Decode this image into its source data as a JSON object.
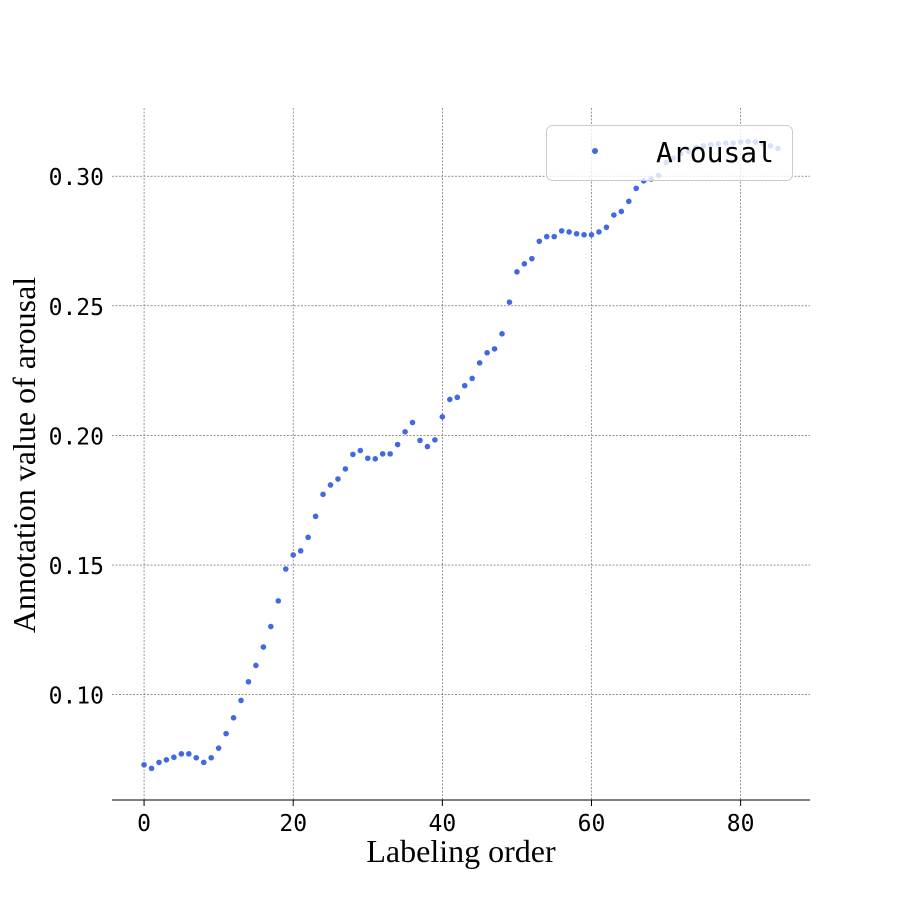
{
  "chart_data": {
    "type": "scatter",
    "title": "",
    "xlabel": "Labeling order",
    "ylabel": "Annotation value of arousal",
    "xlim": [
      -4.3,
      89.3
    ],
    "ylim": [
      0.0594,
      0.3263
    ],
    "x_ticks": [
      0,
      20,
      40,
      60,
      80
    ],
    "x_tick_labels": [
      "0",
      "20",
      "40",
      "60",
      "80"
    ],
    "y_ticks": [
      0.1,
      0.15,
      0.2,
      0.25,
      0.3
    ],
    "y_tick_labels": [
      "0.10",
      "0.15",
      "0.20",
      "0.25",
      "0.30"
    ],
    "grid": true,
    "legend_position": "top-right",
    "series": [
      {
        "name": "Arousal",
        "color": "#4169e1",
        "x": [
          0,
          1,
          2,
          3,
          4,
          5,
          6,
          7,
          8,
          9,
          10,
          11,
          12,
          13,
          14,
          15,
          16,
          17,
          18,
          19,
          20,
          21,
          22,
          23,
          24,
          25,
          26,
          27,
          28,
          29,
          30,
          31,
          32,
          33,
          34,
          35,
          36,
          37,
          38,
          39,
          40,
          41,
          42,
          43,
          44,
          45,
          46,
          47,
          48,
          49,
          50,
          51,
          52,
          53,
          54,
          55,
          56,
          57,
          58,
          59,
          60,
          61,
          62,
          63,
          64,
          65,
          66,
          67,
          68,
          69,
          70,
          71,
          72,
          73,
          74,
          75,
          76,
          77,
          78,
          79,
          80,
          81,
          82,
          83,
          84,
          85
        ],
        "y": [
          0.073,
          0.0716,
          0.0739,
          0.0749,
          0.0759,
          0.0772,
          0.0772,
          0.0757,
          0.0739,
          0.0757,
          0.0794,
          0.085,
          0.0911,
          0.0978,
          0.105,
          0.1113,
          0.1184,
          0.1263,
          0.1362,
          0.1485,
          0.1539,
          0.1555,
          0.1607,
          0.1688,
          0.1773,
          0.1809,
          0.1832,
          0.1871,
          0.1927,
          0.1942,
          0.1912,
          0.191,
          0.1929,
          0.1929,
          0.1965,
          0.2014,
          0.205,
          0.1981,
          0.1957,
          0.1983,
          0.2072,
          0.2139,
          0.2147,
          0.2192,
          0.222,
          0.228,
          0.2319,
          0.2334,
          0.2392,
          0.2514,
          0.2631,
          0.2662,
          0.2682,
          0.2749,
          0.2767,
          0.2767,
          0.2789,
          0.2785,
          0.2778,
          0.2774,
          0.2774,
          0.2785,
          0.2803,
          0.285,
          0.2864,
          0.2903,
          0.2953,
          0.2982,
          0.2989,
          0.3003,
          0.3053,
          0.307,
          0.3088,
          0.3096,
          0.311,
          0.3117,
          0.3121,
          0.3125,
          0.3128,
          0.3128,
          0.3132,
          0.3134,
          0.3132,
          0.3125,
          0.3117,
          0.3107
        ]
      }
    ]
  }
}
